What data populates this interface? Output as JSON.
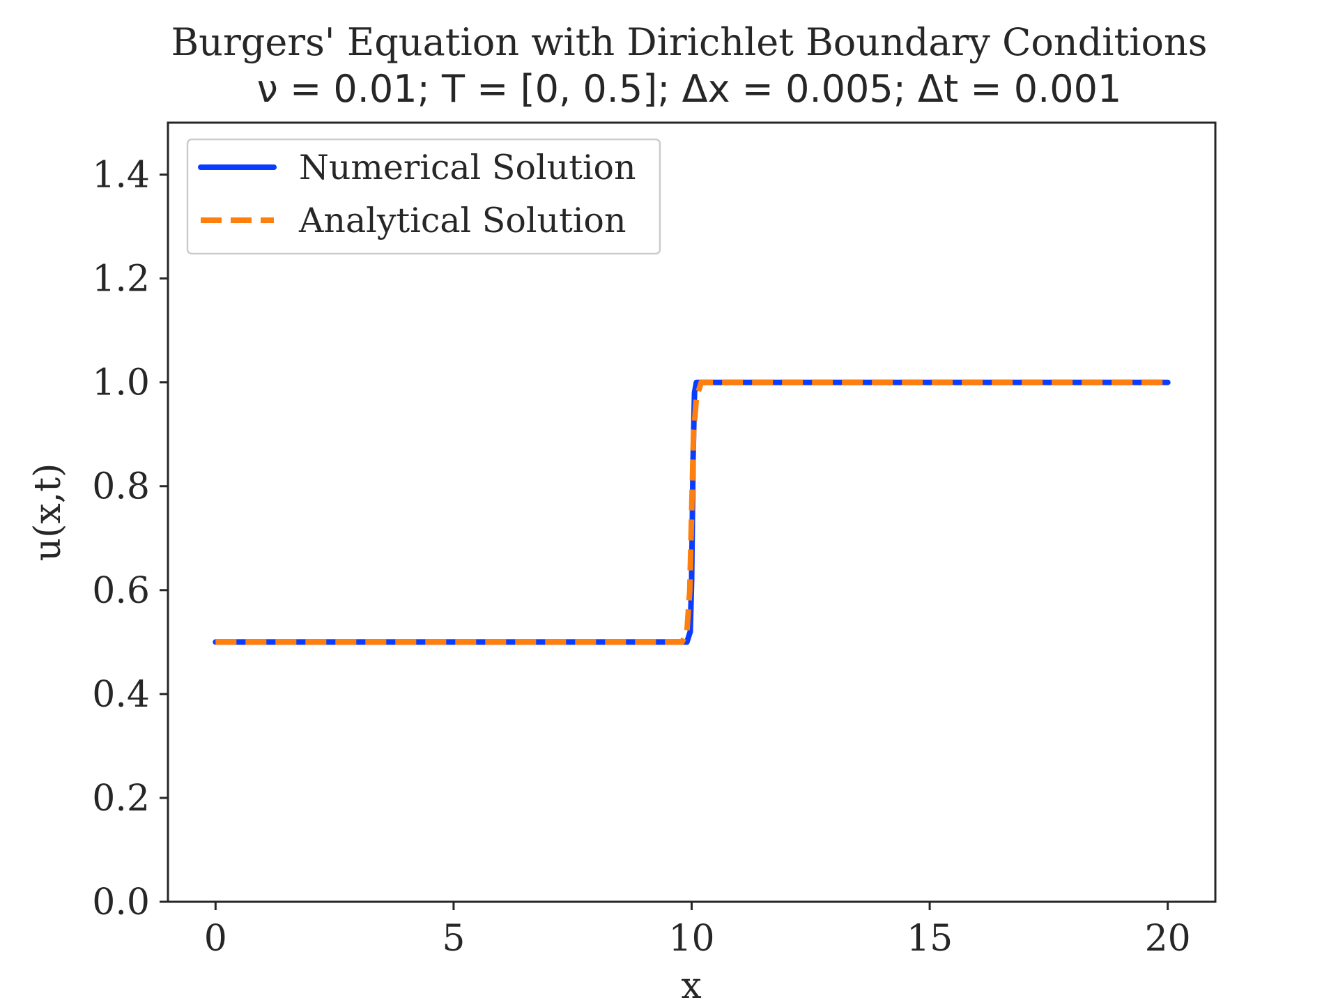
{
  "chart_data": {
    "type": "line",
    "title": "Burgers' Equation with Dirichlet Boundary Conditions",
    "subtitle": "ν = 0.01; T = [0, 0.5]; Δx = 0.005; Δt = 0.001",
    "xlabel": "x",
    "ylabel": "u(x,t)",
    "xlim": [
      -1,
      21
    ],
    "ylim": [
      0.0,
      1.5
    ],
    "xticks": [
      0,
      5,
      10,
      15,
      20
    ],
    "xtick_labels": [
      "0",
      "5",
      "10",
      "15",
      "20"
    ],
    "yticks": [
      0.0,
      0.2,
      0.4,
      0.6,
      0.8,
      1.0,
      1.2,
      1.4
    ],
    "ytick_labels": [
      "0.0",
      "0.2",
      "0.4",
      "0.6",
      "0.8",
      "1.0",
      "1.2",
      "1.4"
    ],
    "grid": false,
    "legend_position": "top-left",
    "series": [
      {
        "name": "Numerical Solution",
        "style": "solid",
        "color": "#0a3cff",
        "x": [
          0,
          9.9,
          9.97,
          10.0,
          10.03,
          10.06,
          10.1,
          20
        ],
        "y": [
          0.5,
          0.5,
          0.52,
          0.62,
          0.85,
          0.98,
          1.0,
          1.0
        ]
      },
      {
        "name": "Analytical Solution",
        "style": "dashed",
        "color": "#ff7f0e",
        "x": [
          0,
          9.8,
          9.9,
          9.96,
          10.0,
          10.04,
          10.1,
          10.2,
          20
        ],
        "y": [
          0.5,
          0.5,
          0.52,
          0.6,
          0.75,
          0.9,
          0.97,
          1.0,
          1.0
        ]
      }
    ]
  }
}
